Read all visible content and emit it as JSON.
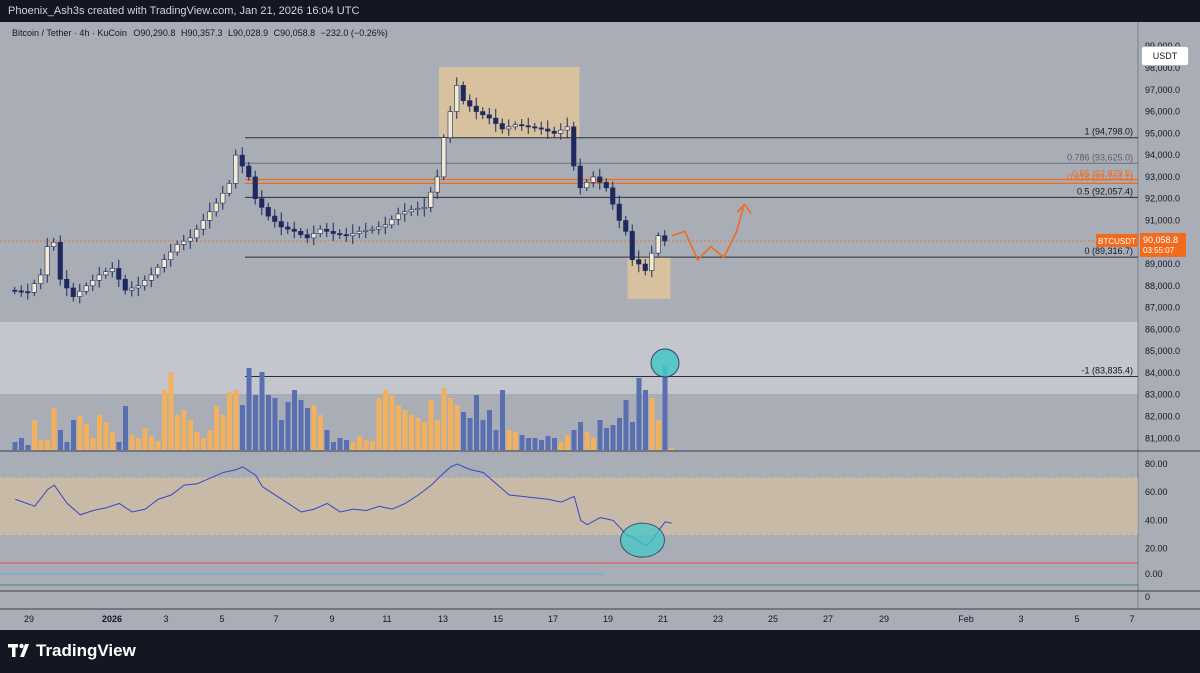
{
  "header": {
    "credit": "Phoenix_Ash3s created with TradingView.com, Jan 21, 2026 16:04 UTC"
  },
  "legend": {
    "symbol": "Bitcoin / Tether · 4h · KuCoin",
    "open": "O90,290.8",
    "high": "H90,357.3",
    "low": "L90,028.9",
    "close": "C90,058.8",
    "change": "−232.0 (−0.26%)"
  },
  "currency_button": "USDT",
  "footer": {
    "brand": "TradingView"
  },
  "colors": {
    "background": "#a9adb6",
    "candle_up": "#f3ead3",
    "candle_down": "#1e2a5e",
    "volume_up": "#f2b15c",
    "volume_down": "#5a6fb0",
    "fib_orange": "#f26b1d",
    "rsi_line": "#3348c8",
    "highlight_zone": "#e2c59a",
    "circle_fill": "#45c9c7"
  },
  "chart_data": [
    {
      "type": "candlestick",
      "symbol": "BTCUSDT",
      "timeframe": "4h",
      "x_tick_labels": [
        "29",
        "2026",
        "3",
        "5",
        "7",
        "9",
        "11",
        "13",
        "15",
        "17",
        "19",
        "21",
        "23",
        "25",
        "27",
        "29",
        "Feb",
        "3",
        "5",
        "7"
      ],
      "y_tick_labels": [
        "99,000.0",
        "98,000.0",
        "97,000.0",
        "96,000.0",
        "95,000.0",
        "94,000.0",
        "93,000.0",
        "92,000.0",
        "91,000.0",
        "90,000.0",
        "89,000.0",
        "88,000.0",
        "87,000.0",
        "86,000.0",
        "85,000.0",
        "84,000.0",
        "83,000.0",
        "82,000.0",
        "81,000.0"
      ],
      "ylim": [
        80500,
        99500
      ],
      "price_path": [
        [
          0,
          87800
        ],
        [
          3,
          87700
        ],
        [
          5,
          88500
        ],
        [
          6,
          89800
        ],
        [
          7,
          90000
        ],
        [
          8,
          88300
        ],
        [
          10,
          87500
        ],
        [
          12,
          88000
        ],
        [
          14,
          88500
        ],
        [
          16,
          88800
        ],
        [
          18,
          87800
        ],
        [
          20,
          88000
        ],
        [
          22,
          88500
        ],
        [
          24,
          89200
        ],
        [
          26,
          89900
        ],
        [
          28,
          90200
        ],
        [
          30,
          91000
        ],
        [
          32,
          91800
        ],
        [
          34,
          92700
        ],
        [
          35,
          94000
        ],
        [
          36,
          93500
        ],
        [
          37,
          93000
        ],
        [
          38,
          92000
        ],
        [
          40,
          91200
        ],
        [
          42,
          90700
        ],
        [
          44,
          90500
        ],
        [
          46,
          90200
        ],
        [
          48,
          90600
        ],
        [
          50,
          90400
        ],
        [
          52,
          90300
        ],
        [
          54,
          90500
        ],
        [
          56,
          90600
        ],
        [
          58,
          90800
        ],
        [
          60,
          91300
        ],
        [
          62,
          91500
        ],
        [
          64,
          91600
        ],
        [
          66,
          93000
        ],
        [
          67,
          94800
        ],
        [
          68,
          96000
        ],
        [
          69,
          97200
        ],
        [
          70,
          96500
        ],
        [
          72,
          96000
        ],
        [
          74,
          95700
        ],
        [
          76,
          95200
        ],
        [
          78,
          95400
        ],
        [
          80,
          95300
        ],
        [
          82,
          95200
        ],
        [
          84,
          95000
        ],
        [
          86,
          95300
        ],
        [
          87,
          93500
        ],
        [
          88,
          92500
        ],
        [
          90,
          93000
        ],
        [
          92,
          92500
        ],
        [
          94,
          91000
        ],
        [
          95,
          90500
        ],
        [
          96,
          89200
        ],
        [
          97,
          89000
        ],
        [
          98,
          88700
        ],
        [
          99,
          89500
        ],
        [
          100,
          90300
        ],
        [
          101,
          90058.8
        ]
      ],
      "last_price": {
        "label": "BTCUSDT",
        "value": "90,058.8",
        "countdown": "03:55:07"
      },
      "fibonacci": [
        {
          "label": "1 (94,798.0)",
          "value": 94798.0
        },
        {
          "label": "0.786 (93,625.0)",
          "value": 93625.0
        },
        {
          "label": "0.65 (92,879.5)",
          "value": 92879.5
        },
        {
          "label": "0.618 (92,704.1)",
          "value": 92704.1
        },
        {
          "label": "0.5 (92,057.4)",
          "value": 92057.4
        },
        {
          "label": "0 (89,316.7)",
          "value": 89316.7
        },
        {
          "label": "-1 (83,835.4)",
          "value": 83835.4
        }
      ],
      "zones": [
        {
          "name": "top-distribution-box",
          "from_bar": 66,
          "to_bar": 87,
          "low": 94800,
          "high": 98050
        },
        {
          "name": "bottom-demand-box",
          "from_bar": 95,
          "to_bar": 101,
          "low": 87400,
          "high": 89300
        }
      ],
      "forecast_path": [
        [
          101,
          90300
        ],
        [
          103,
          90500
        ],
        [
          105,
          89200
        ],
        [
          107,
          89800
        ],
        [
          109,
          89300
        ],
        [
          111,
          90500
        ],
        [
          112,
          91600
        ]
      ]
    },
    {
      "type": "bar",
      "name": "volume",
      "values": [
        0.08,
        0.12,
        0.05,
        0.3,
        0.1,
        0.1,
        0.42,
        0.2,
        0.08,
        0.3,
        0.34,
        0.26,
        0.12,
        0.35,
        0.28,
        0.18,
        0.08,
        0.44,
        0.15,
        0.12,
        0.22,
        0.14,
        0.09,
        0.6,
        0.78,
        0.35,
        0.4,
        0.3,
        0.18,
        0.12,
        0.2,
        0.44,
        0.35,
        0.58,
        0.6,
        0.45,
        0.82,
        0.55,
        0.78,
        0.55,
        0.52,
        0.3,
        0.48,
        0.6,
        0.5,
        0.42,
        0.45,
        0.35,
        0.2,
        0.08,
        0.12,
        0.1,
        0.08,
        0.14,
        0.1,
        0.09,
        0.52,
        0.6,
        0.55,
        0.45,
        0.4,
        0.35,
        0.32,
        0.28,
        0.5,
        0.3,
        0.62,
        0.52,
        0.45,
        0.38,
        0.32,
        0.55,
        0.3,
        0.4,
        0.2,
        0.6,
        0.2,
        0.18,
        0.15,
        0.12,
        0.12,
        0.1,
        0.14,
        0.12,
        0.08,
        0.15,
        0.2,
        0.28,
        0.18,
        0.12,
        0.3,
        0.22,
        0.25,
        0.32,
        0.5,
        0.28,
        0.72,
        0.6,
        0.52,
        0.3,
        0.85,
        0.02
      ]
    },
    {
      "type": "line",
      "name": "rsi",
      "y_tick_labels": [
        "80.00",
        "60.00",
        "40.00",
        "20.00"
      ],
      "ylim": [
        10,
        85
      ],
      "bands": {
        "upper": 70,
        "lower": 30
      },
      "values": [
        [
          0,
          55
        ],
        [
          3,
          50
        ],
        [
          5,
          62
        ],
        [
          6,
          65
        ],
        [
          8,
          52
        ],
        [
          10,
          44
        ],
        [
          12,
          47
        ],
        [
          14,
          49
        ],
        [
          16,
          52
        ],
        [
          18,
          46
        ],
        [
          20,
          48
        ],
        [
          22,
          55
        ],
        [
          24,
          58
        ],
        [
          26,
          65
        ],
        [
          28,
          66
        ],
        [
          30,
          70
        ],
        [
          32,
          74
        ],
        [
          34,
          76
        ],
        [
          35,
          78
        ],
        [
          37,
          72
        ],
        [
          38,
          64
        ],
        [
          40,
          58
        ],
        [
          42,
          52
        ],
        [
          44,
          46
        ],
        [
          46,
          48
        ],
        [
          48,
          52
        ],
        [
          50,
          46
        ],
        [
          52,
          48
        ],
        [
          54,
          47
        ],
        [
          56,
          50
        ],
        [
          58,
          48
        ],
        [
          60,
          52
        ],
        [
          62,
          58
        ],
        [
          64,
          65
        ],
        [
          66,
          74
        ],
        [
          67,
          78
        ],
        [
          68,
          80
        ],
        [
          70,
          76
        ],
        [
          72,
          74
        ],
        [
          74,
          66
        ],
        [
          76,
          58
        ],
        [
          78,
          57
        ],
        [
          80,
          56
        ],
        [
          82,
          55
        ],
        [
          84,
          53
        ],
        [
          86,
          57
        ],
        [
          87,
          40
        ],
        [
          88,
          37
        ],
        [
          90,
          42
        ],
        [
          92,
          40
        ],
        [
          94,
          30
        ],
        [
          95,
          28
        ],
        [
          96,
          25
        ],
        [
          97,
          22
        ],
        [
          98,
          26
        ],
        [
          99,
          33
        ],
        [
          100,
          39
        ],
        [
          101,
          38
        ]
      ]
    }
  ]
}
